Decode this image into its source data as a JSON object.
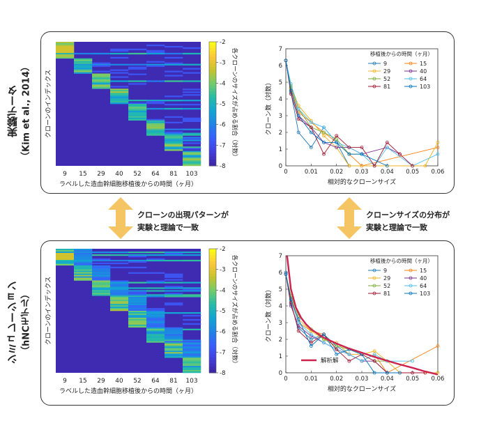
{
  "rows": [
    {
      "section_label": "実験データ",
      "section_sublabel": "（Kim et al., 2014）",
      "heatmap": {
        "categories": [
          "9",
          "15",
          "29",
          "40",
          "52",
          "64",
          "81",
          "103"
        ],
        "y_label": "クローンのインデックス",
        "x_label": "ラベルした造血幹細胞移植後からの時間（ヶ月）",
        "colorbar_label": "各クローンのサイズが占める割合（対数）",
        "colorbar_ticks": [
          "-2",
          "-3",
          "-4",
          "-5",
          "-6",
          "-7",
          "-8"
        ]
      }
    },
    {
      "section_label": "シミュレーション",
      "section_sublabel": "（hNCモデル）",
      "heatmap": {
        "categories": [
          "9",
          "15",
          "29",
          "40",
          "52",
          "64",
          "81",
          "103"
        ],
        "y_label": "クローンのインデックス",
        "x_label": "ラベルした造血幹細胞移植後からの時間（ヶ月）",
        "colorbar_label": "各クローンのサイズが占める割合（対数）",
        "colorbar_ticks": [
          "-2",
          "-3",
          "-4",
          "-5",
          "-6",
          "-7",
          "-8"
        ]
      }
    }
  ],
  "middle": {
    "left_line1": "クローンの出現パターンが",
    "left_line2": "実験と理論で一致",
    "right_line1": "クローンサイズの分布が",
    "right_line2": "実験と理論で一致"
  },
  "colors": {
    "arrow": "#f5c463",
    "heat_low": "#3e26a8",
    "heat_high": "#f9fb15",
    "analytic": "#cc2250"
  },
  "chart_data": [
    {
      "type": "line",
      "title": "",
      "xlabel": "相対的なクローンサイズ",
      "ylabel": "クローン数（対数）",
      "xlim": [
        0,
        0.06
      ],
      "ylim": [
        0,
        7
      ],
      "xticks": [
        "0",
        "0.01",
        "0.02",
        "0.03",
        "0.04",
        "0.05",
        "0.06"
      ],
      "yticks": [
        "0",
        "1",
        "2",
        "3",
        "4",
        "5",
        "6",
        "7"
      ],
      "legend_title": "移植後からの時間（ヶ月）",
      "legend_position": "top-right",
      "series": [
        {
          "name": "9",
          "color": "#1f77b4",
          "x": [
            0,
            0.002,
            0.005,
            0.01,
            0.015,
            0.02,
            0.025
          ],
          "y": [
            6.3,
            4.4,
            2.0,
            1.1,
            2.3,
            1.4,
            0.0
          ]
        },
        {
          "name": "15",
          "color": "#ff7f0e",
          "x": [
            0,
            0.002,
            0.005,
            0.01,
            0.015,
            0.02,
            0.025,
            0.03,
            0.06
          ],
          "y": [
            6.3,
            4.6,
            3.2,
            2.6,
            2.0,
            1.4,
            0.7,
            0.0,
            1.1
          ]
        },
        {
          "name": "29",
          "color": "#f0b11d",
          "x": [
            0,
            0.002,
            0.005,
            0.01,
            0.015,
            0.02,
            0.025,
            0.055,
            0.06
          ],
          "y": [
            6.3,
            4.8,
            3.6,
            2.7,
            1.8,
            1.1,
            0.0,
            0.0,
            1.4
          ]
        },
        {
          "name": "40",
          "color": "#7e2f8e",
          "x": [
            0,
            0.002,
            0.005,
            0.01,
            0.015,
            0.02,
            0.025,
            0.03,
            0.04,
            0.045
          ],
          "y": [
            6.3,
            4.5,
            3.0,
            2.3,
            1.4,
            1.1,
            1.1,
            0.7,
            1.1,
            0.7
          ]
        },
        {
          "name": "52",
          "color": "#77ac30",
          "x": [
            0,
            0.002,
            0.005,
            0.01,
            0.015,
            0.02,
            0.025,
            0.03
          ],
          "y": [
            6.3,
            4.7,
            3.4,
            2.3,
            2.0,
            1.6,
            0.7,
            0.7
          ]
        },
        {
          "name": "64",
          "color": "#4dbeee",
          "x": [
            0,
            0.002,
            0.005,
            0.01,
            0.015,
            0.02,
            0.025,
            0.03,
            0.035,
            0.04,
            0.05,
            0.06
          ],
          "y": [
            6.3,
            4.9,
            3.4,
            2.6,
            2.3,
            1.4,
            1.1,
            0.7,
            0.0,
            1.1,
            0.0,
            0.7
          ]
        },
        {
          "name": "81",
          "color": "#a2142f",
          "x": [
            0,
            0.002,
            0.005,
            0.01,
            0.015,
            0.02,
            0.025,
            0.03,
            0.035,
            0.04,
            0.045,
            0.05
          ],
          "y": [
            6.3,
            4.3,
            2.8,
            2.3,
            0.7,
            1.8,
            1.1,
            1.1,
            0.0,
            1.4,
            0.7,
            0.0
          ]
        },
        {
          "name": "103",
          "color": "#0072bd",
          "x": [
            0,
            0.002,
            0.005,
            0.01,
            0.015,
            0.02,
            0.025,
            0.03,
            0.04
          ],
          "y": [
            6.3,
            4.5,
            3.0,
            2.0,
            1.4,
            1.4,
            0.7,
            0.7,
            0.0
          ]
        }
      ]
    },
    {
      "type": "line",
      "title": "",
      "xlabel": "相対的なクローンサイズ",
      "ylabel": "クローン数（対数）",
      "xlim": [
        0,
        0.06
      ],
      "ylim": [
        0,
        7
      ],
      "xticks": [
        "0",
        "0.01",
        "0.02",
        "0.03",
        "0.04",
        "0.05",
        "0.06"
      ],
      "yticks": [
        "0",
        "1",
        "2",
        "3",
        "4",
        "5",
        "6",
        "7"
      ],
      "legend_title": "移植後からの時間（ヶ月）",
      "legend_position": "top-right",
      "analytic_label": "解析解",
      "analytic": {
        "x": [
          0.0005,
          0.002,
          0.004,
          0.006,
          0.008,
          0.01,
          0.015,
          0.02,
          0.025,
          0.03,
          0.035,
          0.04,
          0.045,
          0.05,
          0.055,
          0.06
        ],
        "y": [
          7.0,
          5.0,
          3.9,
          3.3,
          2.9,
          2.6,
          2.1,
          1.75,
          1.45,
          1.2,
          0.95,
          0.72,
          0.5,
          0.3,
          0.08,
          -0.1
        ]
      },
      "series": [
        {
          "name": "9",
          "color": "#1f77b4",
          "x": [
            0,
            0.002,
            0.005,
            0.01,
            0.015,
            0.02,
            0.025,
            0.03
          ],
          "y": [
            6.0,
            4.1,
            2.7,
            2.0,
            2.3,
            1.6,
            1.1,
            0.7
          ]
        },
        {
          "name": "15",
          "color": "#ff7f0e",
          "x": [
            0,
            0.002,
            0.005,
            0.01,
            0.015,
            0.02,
            0.025,
            0.03,
            0.035,
            0.04,
            0.06
          ],
          "y": [
            5.9,
            4.4,
            3.0,
            2.5,
            2.3,
            1.4,
            1.1,
            0.7,
            1.1,
            0.0,
            1.6
          ]
        },
        {
          "name": "29",
          "color": "#f0b11d",
          "x": [
            0,
            0.002,
            0.005,
            0.01,
            0.015,
            0.02,
            0.025,
            0.03,
            0.035,
            0.04,
            0.045,
            0.055,
            0.06
          ],
          "y": [
            5.9,
            4.5,
            3.2,
            2.5,
            2.0,
            1.8,
            1.1,
            1.1,
            1.3,
            0.7,
            0.0,
            0.0,
            0.0
          ]
        },
        {
          "name": "40",
          "color": "#7e2f8e",
          "x": [
            0,
            0.002,
            0.005,
            0.01,
            0.015,
            0.02,
            0.025,
            0.03,
            0.035,
            0.04
          ],
          "y": [
            5.9,
            4.0,
            2.8,
            2.2,
            1.8,
            1.4,
            1.1,
            0.7,
            0.7,
            0.0
          ]
        },
        {
          "name": "52",
          "color": "#77ac30",
          "x": [
            0,
            0.002,
            0.005,
            0.01,
            0.015,
            0.02,
            0.025,
            0.03,
            0.035,
            0.04
          ],
          "y": [
            5.9,
            4.6,
            3.4,
            2.6,
            2.0,
            1.6,
            1.4,
            1.1,
            0.7,
            0.7
          ]
        },
        {
          "name": "64",
          "color": "#4dbeee",
          "x": [
            0,
            0.002,
            0.005,
            0.01,
            0.015,
            0.02,
            0.025,
            0.03,
            0.035,
            0.04,
            0.05
          ],
          "y": [
            5.9,
            4.3,
            3.0,
            2.3,
            1.8,
            1.4,
            1.1,
            0.7,
            1.1,
            0.7,
            0.7
          ]
        },
        {
          "name": "81",
          "color": "#a2142f",
          "x": [
            0,
            0.002,
            0.005,
            0.01,
            0.015,
            0.02,
            0.025,
            0.03,
            0.035,
            0.04,
            0.05,
            0.055
          ],
          "y": [
            5.9,
            4.2,
            2.5,
            1.8,
            2.3,
            1.4,
            0.7,
            1.1,
            0.7,
            0.0,
            0.0,
            0.0
          ]
        },
        {
          "name": "103",
          "color": "#0072bd",
          "x": [
            0,
            0.002,
            0.005,
            0.01,
            0.015,
            0.02,
            0.025,
            0.03,
            0.035,
            0.04,
            0.045
          ],
          "y": [
            5.9,
            4.4,
            3.2,
            1.6,
            2.3,
            1.1,
            1.4,
            1.1,
            0.0,
            0.0,
            0.0
          ]
        }
      ]
    }
  ]
}
